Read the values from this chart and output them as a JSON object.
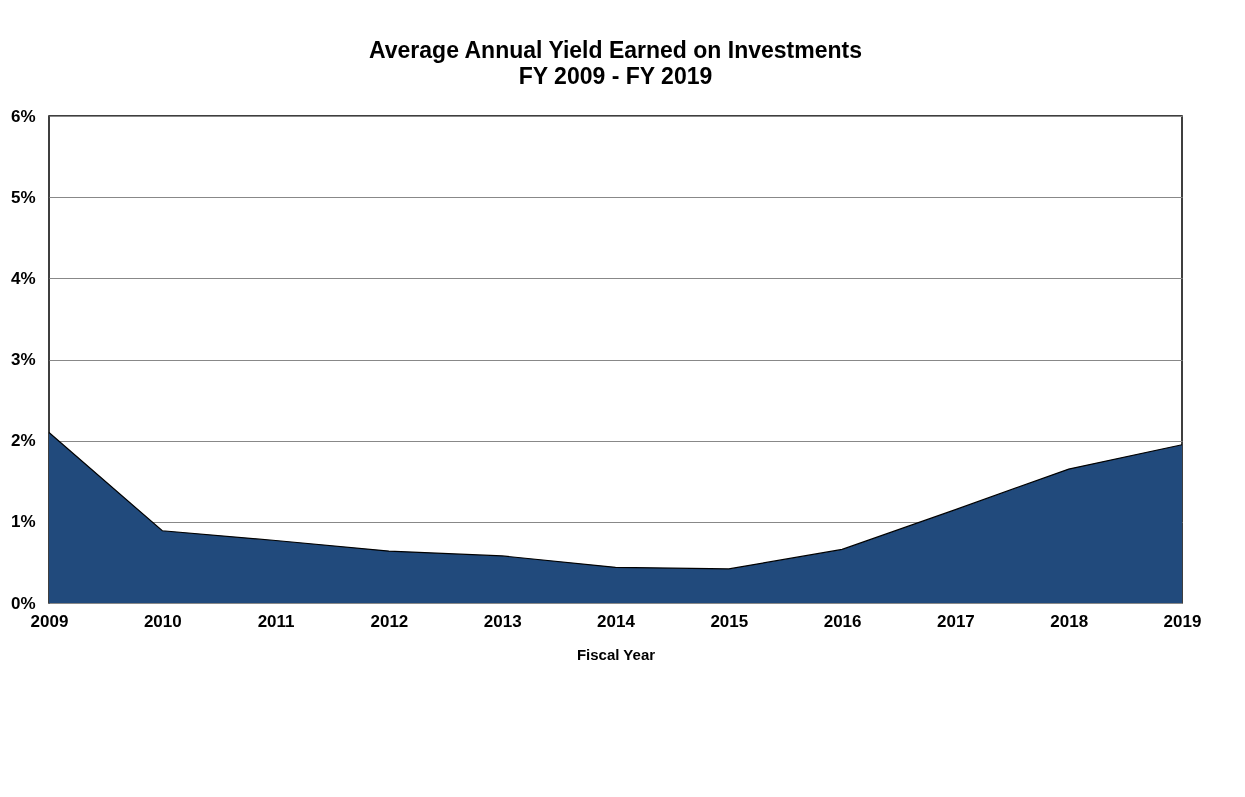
{
  "chart_data": {
    "type": "area",
    "title": "Average Annual Yield Earned on Investments",
    "subtitle": "FY 2009 - FY 2019",
    "xlabel": "Fiscal Year",
    "categories": [
      "2009",
      "2010",
      "2011",
      "2012",
      "2013",
      "2014",
      "2015",
      "2016",
      "2017",
      "2018",
      "2019"
    ],
    "series": [
      {
        "color": "#214a7c",
        "values": [
          2.1,
          0.89,
          0.77,
          0.64,
          0.58,
          0.44,
          0.42,
          0.66,
          1.15,
          1.65,
          1.95
        ]
      }
    ],
    "ylim": [
      0,
      6
    ],
    "yticks": [
      {
        "value": 0,
        "label": "0%"
      },
      {
        "value": 1,
        "label": "1%"
      },
      {
        "value": 2,
        "label": "2%"
      },
      {
        "value": 3,
        "label": "3%"
      },
      {
        "value": 4,
        "label": "4%"
      },
      {
        "value": 5,
        "label": "5%"
      },
      {
        "value": 6,
        "label": "6%"
      }
    ],
    "grid": "y"
  }
}
